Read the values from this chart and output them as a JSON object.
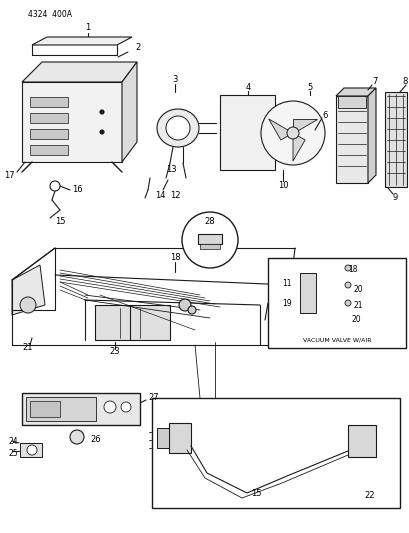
{
  "bg_color": "#ffffff",
  "line_color": "#1a1a1a",
  "fig_width": 4.1,
  "fig_height": 5.33,
  "dpi": 100,
  "header": "4324  400A",
  "vv_label": "VACUUM VALVE W/AIR"
}
